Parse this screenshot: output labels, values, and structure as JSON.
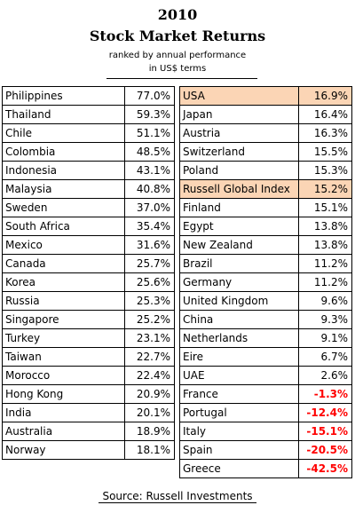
{
  "header": {
    "year": "2010",
    "title": "Stock Market Returns",
    "note_line1": "ranked by annual performance",
    "note_line2": "in US$ terms"
  },
  "left_table": [
    {
      "country": "Philippines",
      "return": "77.0%"
    },
    {
      "country": "Thailand",
      "return": "59.3%"
    },
    {
      "country": "Chile",
      "return": "51.1%"
    },
    {
      "country": "Colombia",
      "return": "48.5%"
    },
    {
      "country": "Indonesia",
      "return": "43.1%"
    },
    {
      "country": "Malaysia",
      "return": "40.8%"
    },
    {
      "country": "Sweden",
      "return": "37.0%"
    },
    {
      "country": "South Africa",
      "return": "35.4%"
    },
    {
      "country": "Mexico",
      "return": "31.6%"
    },
    {
      "country": "Canada",
      "return": "25.7%"
    },
    {
      "country": "Korea",
      "return": "25.6%"
    },
    {
      "country": "Russia",
      "return": "25.3%"
    },
    {
      "country": "Singapore",
      "return": "25.2%"
    },
    {
      "country": "Turkey",
      "return": "23.1%"
    },
    {
      "country": "Taiwan",
      "return": "22.7%"
    },
    {
      "country": "Morocco",
      "return": "22.4%"
    },
    {
      "country": "Hong Kong",
      "return": "20.9%"
    },
    {
      "country": "India",
      "return": "20.1%"
    },
    {
      "country": "Australia",
      "return": "18.9%"
    },
    {
      "country": "Norway",
      "return": "18.1%"
    }
  ],
  "right_table": [
    {
      "country": "USA",
      "return": "16.9%",
      "highlight": true,
      "negative": false
    },
    {
      "country": "Japan",
      "return": "16.4%",
      "highlight": false,
      "negative": false
    },
    {
      "country": "Austria",
      "return": "16.3%",
      "highlight": false,
      "negative": false
    },
    {
      "country": "Switzerland",
      "return": "15.5%",
      "highlight": false,
      "negative": false
    },
    {
      "country": "Poland",
      "return": "15.3%",
      "highlight": false,
      "negative": false
    },
    {
      "country": "Russell Global Index",
      "return": "15.2%",
      "highlight": true,
      "negative": false
    },
    {
      "country": "Finland",
      "return": "15.1%",
      "highlight": false,
      "negative": false
    },
    {
      "country": "Egypt",
      "return": "13.8%",
      "highlight": false,
      "negative": false
    },
    {
      "country": "New Zealand",
      "return": "13.8%",
      "highlight": false,
      "negative": false
    },
    {
      "country": "Brazil",
      "return": "11.2%",
      "highlight": false,
      "negative": false
    },
    {
      "country": "Germany",
      "return": "11.2%",
      "highlight": false,
      "negative": false
    },
    {
      "country": "United Kingdom",
      "return": "9.6%",
      "highlight": false,
      "negative": false
    },
    {
      "country": "China",
      "return": "9.3%",
      "highlight": false,
      "negative": false
    },
    {
      "country": "Netherlands",
      "return": "9.1%",
      "highlight": false,
      "negative": false
    },
    {
      "country": "Eire",
      "return": "6.7%",
      "highlight": false,
      "negative": false
    },
    {
      "country": "UAE",
      "return": "2.6%",
      "highlight": false,
      "negative": false
    },
    {
      "country": "France",
      "return": "-1.3%",
      "highlight": false,
      "negative": true
    },
    {
      "country": "Portugal",
      "return": "-12.4%",
      "highlight": false,
      "negative": true
    },
    {
      "country": "Italy",
      "return": "-15.1%",
      "highlight": false,
      "negative": true
    },
    {
      "country": "Spain",
      "return": "-20.5%",
      "highlight": false,
      "negative": true
    },
    {
      "country": "Greece",
      "return": "-42.5%",
      "highlight": false,
      "negative": true
    }
  ],
  "colors": {
    "highlight": "#fbd5b5",
    "negative": "#ff0000"
  },
  "source": "Source: Russell Investments"
}
